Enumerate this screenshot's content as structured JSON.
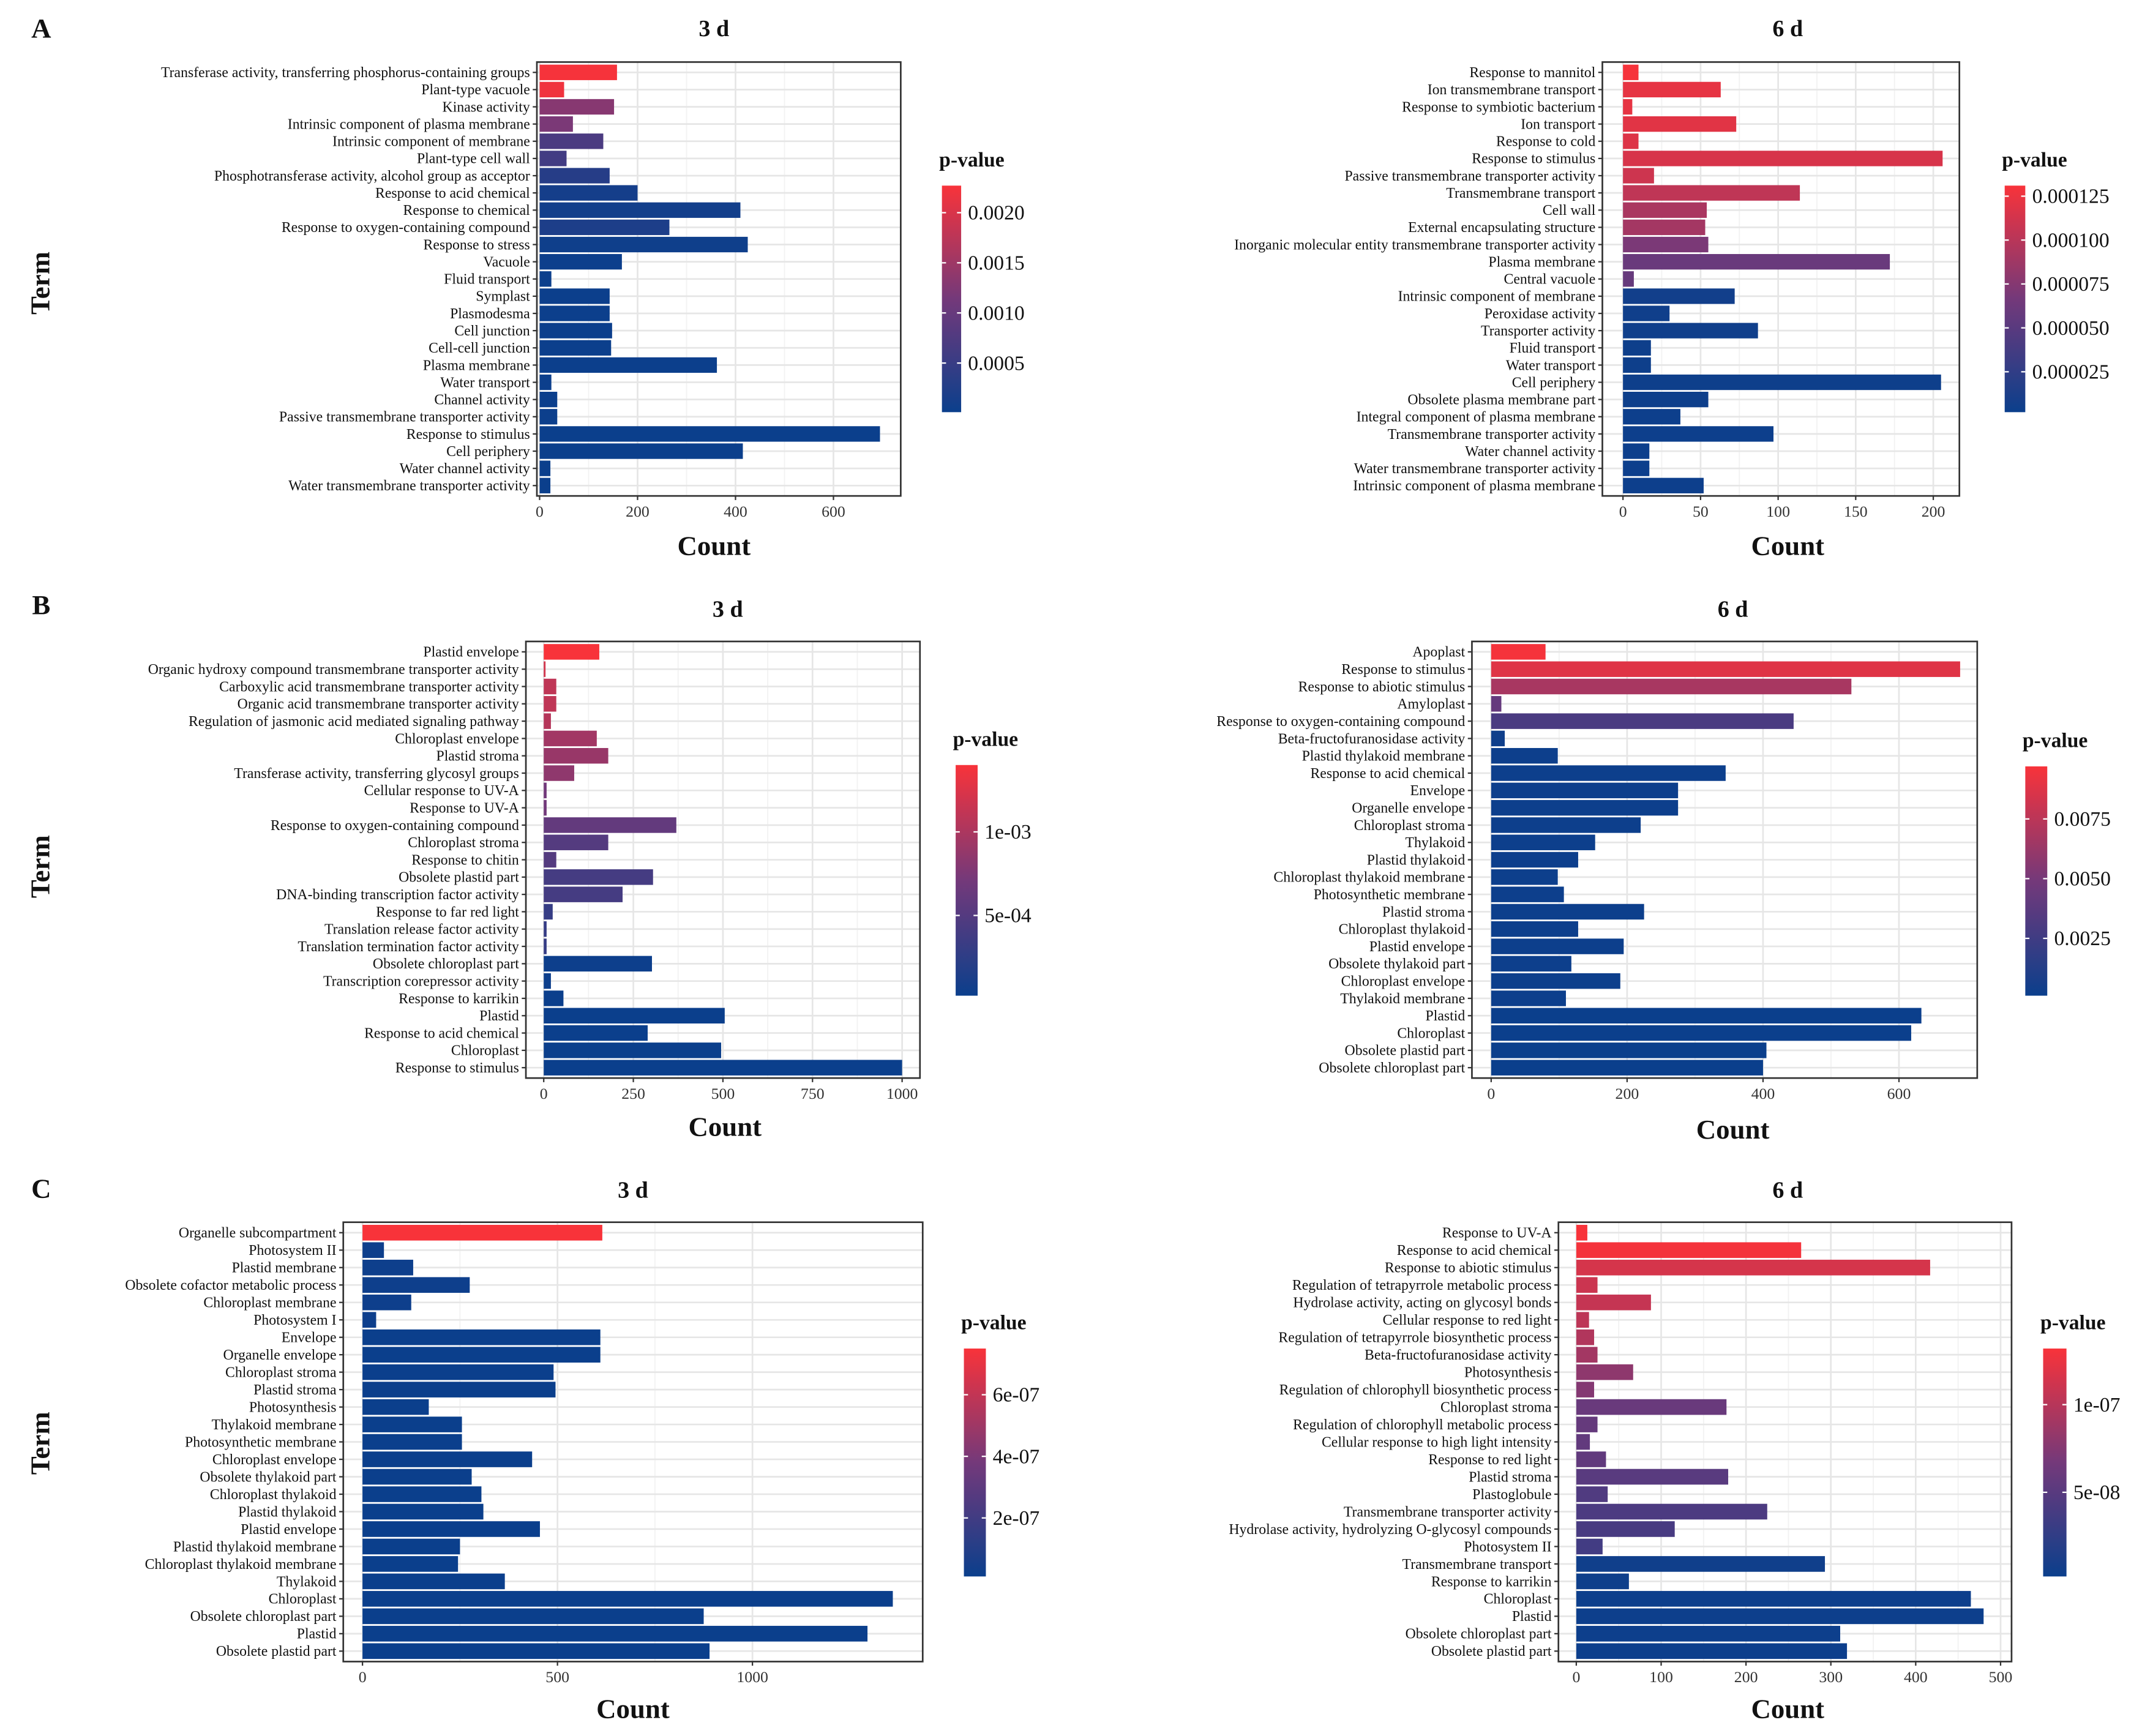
{
  "chart_data": [
    {
      "panel": "A",
      "type": "bar",
      "orientation": "horizontal",
      "title": "3 d",
      "xlabel": "Count",
      "ylabel": "Term",
      "xlim": [
        0,
        730
      ],
      "xticks": [
        0,
        200,
        400,
        600
      ],
      "grid": true,
      "legend": {
        "title": "p-value",
        "placement": "right",
        "limits": [
          1e-05,
          0.00227
        ],
        "ticks": [
          0.002,
          0.0015,
          0.001,
          0.0005
        ],
        "tick_labels": [
          "0.0020",
          "0.0015",
          "0.0010",
          "0.0005"
        ]
      },
      "categories": [
        "Transferase activity, transferring phosphorus-containing groups",
        "Plant-type vacuole",
        "Kinase activity",
        "Intrinsic component of plasma membrane",
        "Intrinsic component of membrane",
        "Plant-type cell wall",
        "Phosphotransferase activity, alcohol group as acceptor",
        "Response to acid chemical",
        "Response to chemical",
        "Response to oxygen-containing compound",
        "Response to stress",
        "Vacuole",
        "Fluid transport",
        "Symplast",
        "Plasmodesma",
        "Cell junction",
        "Cell-cell junction",
        "Plasma membrane",
        "Water transport",
        "Channel activity",
        "Passive transmembrane transporter activity",
        "Response to stimulus",
        "Cell periphery",
        "Water channel activity",
        "Water transmembrane transporter activity"
      ],
      "values": [
        158,
        50,
        152,
        68,
        130,
        55,
        143,
        200,
        410,
        265,
        425,
        168,
        24,
        143,
        143,
        148,
        146,
        362,
        24,
        36,
        36,
        695,
        415,
        22,
        22
      ],
      "pvalues": [
        0.00225,
        0.0022,
        0.0013,
        0.0012,
        0.0007,
        0.0006,
        0.0003,
        0.00012,
        0.0001,
        0.0002,
        5e-05,
        3e-05,
        2e-05,
        2e-05,
        2e-05,
        2e-05,
        2e-05,
        2e-05,
        2e-05,
        2e-05,
        2e-05,
        1e-05,
        1e-05,
        1e-05,
        1e-05
      ]
    },
    {
      "panel": "",
      "type": "bar",
      "orientation": "horizontal",
      "title": "6 d",
      "xlabel": "Count",
      "ylabel": "",
      "xlim": [
        0,
        215
      ],
      "xticks": [
        0,
        50,
        100,
        150,
        200
      ],
      "grid": true,
      "legend": {
        "title": "p-value",
        "placement": "right",
        "limits": [
          2e-06,
          0.000131
        ],
        "ticks": [
          0.000125,
          0.0001,
          7.5e-05,
          5e-05,
          2.5e-05
        ],
        "tick_labels": [
          "0.000125",
          "0.000100",
          "0.000075",
          "0.000050",
          "0.000025"
        ]
      },
      "categories": [
        "Response to mannitol",
        "Ion transmembrane transport",
        "Response to symbiotic bacterium",
        "Ion transport",
        "Response to cold",
        "Response to stimulus",
        "Passive transmembrane transporter activity",
        "Transmembrane transport",
        "Cell wall",
        "External encapsulating structure",
        "Inorganic molecular entity transmembrane transporter activity",
        "Plasma membrane",
        "Central vacuole",
        "Intrinsic component of membrane",
        "Peroxidase activity",
        "Transporter activity",
        "Fluid transport",
        "Water transport",
        "Cell periphery",
        "Obsolete plasma membrane part",
        "Integral component of plasma membrane",
        "Transmembrane transporter activity",
        "Water channel activity",
        "Water transmembrane transporter activity",
        "Intrinsic component of plasma membrane"
      ],
      "values": [
        10,
        63,
        6,
        73,
        10,
        206,
        20,
        114,
        54,
        53,
        55,
        172,
        7,
        72,
        30,
        87,
        18,
        18,
        205,
        55,
        37,
        97,
        17,
        17,
        52
      ],
      "pvalues": [
        0.00013,
        0.000122,
        0.000122,
        0.00012,
        0.000118,
        0.000115,
        0.00011,
        0.000103,
        9.3e-05,
        9e-05,
        7e-05,
        6e-05,
        5.8e-05,
        6e-06,
        5e-06,
        5e-06,
        4e-06,
        4e-06,
        4e-06,
        4e-06,
        3e-06,
        3e-06,
        3e-06,
        3e-06,
        3e-06
      ]
    },
    {
      "panel": "B",
      "type": "bar",
      "orientation": "horizontal",
      "title": "3 d",
      "xlabel": "Count",
      "ylabel": "Term",
      "xlim": [
        0,
        1050
      ],
      "xticks": [
        0,
        250,
        500,
        750,
        1000
      ],
      "grid": true,
      "legend": {
        "title": "p-value",
        "placement": "right",
        "limits": [
          2e-05,
          0.0014
        ],
        "ticks": [
          0.001,
          0.0005
        ],
        "tick_labels": [
          "1e-03",
          "5e-04"
        ]
      },
      "categories": [
        "Plastid envelope",
        "Organic hydroxy compound transmembrane transporter activity",
        "Carboxylic acid transmembrane transporter activity",
        "Organic acid transmembrane transporter activity",
        "Regulation of jasmonic acid mediated signaling pathway",
        "Chloroplast envelope",
        "Plastid stroma",
        "Transferase activity, transferring glycosyl groups",
        "Cellular response to UV-A",
        "Response to UV-A",
        "Response to oxygen-containing compound",
        "Chloroplast stroma",
        "Response to chitin",
        "Obsolete plastid part",
        "DNA-binding transcription factor activity",
        "Response to far red light",
        "Translation release factor activity",
        "Translation termination factor activity",
        "Obsolete chloroplast part",
        "Transcription corepressor activity",
        "Response to karrikin",
        "Plastid",
        "Response to acid chemical",
        "Chloroplast",
        "Response to stimulus"
      ],
      "values": [
        155,
        5,
        35,
        35,
        20,
        148,
        180,
        85,
        8,
        8,
        370,
        180,
        35,
        305,
        220,
        25,
        8,
        8,
        302,
        20,
        55,
        505,
        290,
        495,
        1000
      ],
      "pvalues": [
        0.0014,
        0.0012,
        0.0011,
        0.0011,
        0.00105,
        0.00095,
        0.0009,
        0.00085,
        0.0007,
        0.0007,
        0.0006,
        0.0005,
        0.0005,
        0.0004,
        0.0004,
        0.0003,
        0.0003,
        0.0003,
        3e-05,
        3e-05,
        2e-05,
        2e-05,
        2e-05,
        2e-05,
        2e-05
      ]
    },
    {
      "panel": "",
      "type": "bar",
      "orientation": "horizontal",
      "title": "6 d",
      "xlabel": "Count",
      "ylabel": "",
      "xlim": [
        0,
        725
      ],
      "xticks": [
        0,
        200,
        400,
        600
      ],
      "grid": true,
      "legend": {
        "title": "p-value",
        "placement": "right",
        "limits": [
          0.0001,
          0.0097
        ],
        "ticks": [
          0.0075,
          0.005,
          0.0025
        ],
        "tick_labels": [
          "0.0075",
          "0.0050",
          "0.0025"
        ]
      },
      "categories": [
        "Apoplast",
        "Response to stimulus",
        "Response to abiotic stimulus",
        "Amyloplast",
        "Response to oxygen-containing compound",
        "Beta-fructofuranosidase activity",
        "Plastid thylakoid membrane",
        "Response to acid chemical",
        "Envelope",
        "Organelle envelope",
        "Chloroplast stroma",
        "Thylakoid",
        "Plastid thylakoid",
        "Chloroplast thylakoid membrane",
        "Photosynthetic membrane",
        "Plastid stroma",
        "Chloroplast thylakoid",
        "Plastid envelope",
        "Obsolete thylakoid part",
        "Chloroplast envelope",
        "Thylakoid membrane",
        "Plastid",
        "Chloroplast",
        "Obsolete plastid part",
        "Obsolete chloroplast part"
      ],
      "values": [
        80,
        690,
        530,
        15,
        445,
        20,
        98,
        345,
        275,
        275,
        220,
        153,
        128,
        98,
        107,
        225,
        128,
        195,
        118,
        190,
        110,
        633,
        618,
        405,
        400
      ],
      "pvalues": [
        0.0096,
        0.0088,
        0.0068,
        0.0042,
        0.003,
        0.0003,
        0.0002,
        0.0002,
        0.0002,
        0.0002,
        0.0002,
        0.0002,
        0.0002,
        0.0002,
        0.0002,
        0.0002,
        0.0002,
        0.0002,
        0.0002,
        0.0002,
        0.0002,
        0.0001,
        0.0001,
        0.0001,
        0.0001
      ]
    },
    {
      "panel": "C",
      "type": "bar",
      "orientation": "horizontal",
      "title": "3 d",
      "xlabel": "Count",
      "ylabel": "Term",
      "xlim": [
        0,
        1420
      ],
      "xticks": [
        0,
        500,
        1000
      ],
      "grid": true,
      "legend": {
        "title": "p-value",
        "placement": "right",
        "limits": [
          1e-08,
          7.5e-07
        ],
        "ticks": [
          6e-07,
          4e-07,
          2e-07
        ],
        "tick_labels": [
          "6e-07",
          "4e-07",
          "2e-07"
        ]
      },
      "categories": [
        "Organelle subcompartment",
        "Photosystem II",
        "Plastid membrane",
        "Obsolete cofactor metabolic process",
        "Chloroplast membrane",
        "Photosystem I",
        "Envelope",
        "Organelle envelope",
        "Chloroplast stroma",
        "Plastid stroma",
        "Photosynthesis",
        "Thylakoid membrane",
        "Photosynthetic membrane",
        "Chloroplast envelope",
        "Obsolete thylakoid part",
        "Chloroplast thylakoid",
        "Plastid thylakoid",
        "Plastid envelope",
        "Plastid thylakoid membrane",
        "Chloroplast thylakoid membrane",
        "Thylakoid",
        "Chloroplast",
        "Obsolete chloroplast part",
        "Plastid",
        "Obsolete plastid part"
      ],
      "values": [
        615,
        55,
        130,
        275,
        125,
        35,
        610,
        610,
        490,
        495,
        170,
        255,
        255,
        435,
        280,
        305,
        310,
        455,
        250,
        245,
        365,
        1360,
        875,
        1295,
        890
      ],
      "pvalues": [
        7.5e-07,
        2e-08,
        2e-08,
        2e-08,
        2e-08,
        2e-08,
        1e-08,
        1e-08,
        1e-08,
        1e-08,
        1e-08,
        1e-08,
        1e-08,
        1e-08,
        1e-08,
        1e-08,
        1e-08,
        1e-08,
        1e-08,
        1e-08,
        1e-08,
        1e-08,
        1e-08,
        1e-08,
        1e-08
      ]
    },
    {
      "panel": "",
      "type": "bar",
      "orientation": "horizontal",
      "title": "6 d",
      "xlabel": "Count",
      "ylabel": "",
      "xlim": [
        0,
        500
      ],
      "xticks": [
        0,
        100,
        200,
        300,
        400,
        500
      ],
      "grid": true,
      "legend": {
        "title": "p-value",
        "placement": "right",
        "limits": [
          2e-09,
          1.32e-07
        ],
        "ticks": [
          1e-07,
          5e-08
        ],
        "tick_labels": [
          "1e-07",
          "5e-08"
        ]
      },
      "categories": [
        "Response to UV-A",
        "Response to acid chemical",
        "Response to abiotic stimulus",
        "Regulation of tetrapyrrole metabolic process",
        "Hydrolase activity, acting on glycosyl bonds",
        "Cellular response to red light",
        "Regulation of tetrapyrrole biosynthetic process",
        "Beta-fructofuranosidase activity",
        "Photosynthesis",
        "Regulation of chlorophyll biosynthetic process",
        "Chloroplast stroma",
        "Regulation of chlorophyll metabolic process",
        "Cellular response to high light intensity",
        "Response to red light",
        "Plastid stroma",
        "Plastoglobule",
        "Transmembrane transporter activity",
        "Hydrolase activity, hydrolyzing O-glycosyl compounds",
        "Photosystem II",
        "Transmembrane transport",
        "Response to karrikin",
        "Chloroplast",
        "Plastid",
        "Obsolete chloroplast part",
        "Obsolete plastid part"
      ],
      "values": [
        13,
        265,
        417,
        25,
        88,
        15,
        21,
        25,
        67,
        21,
        177,
        25,
        16,
        35,
        179,
        37,
        225,
        116,
        31,
        293,
        62,
        465,
        480,
        311,
        319
      ],
      "pvalues": [
        1.32e-07,
        1.3e-07,
        1.15e-07,
        1.1e-07,
        1.07e-07,
        1.03e-07,
        9.7e-08,
        9e-08,
        8e-08,
        7.5e-08,
        6e-08,
        5.8e-08,
        5.6e-08,
        5.5e-08,
        5e-08,
        4.5e-08,
        4.2e-08,
        4e-08,
        3.6e-08,
        5e-09,
        4e-09,
        3e-09,
        3e-09,
        3e-09,
        3e-09
      ]
    }
  ],
  "colors": {
    "high": "#F8333A",
    "mid": "#74397A",
    "low": "#0B3F8C",
    "grid": "#E6E6E6",
    "frame": "#333333"
  }
}
